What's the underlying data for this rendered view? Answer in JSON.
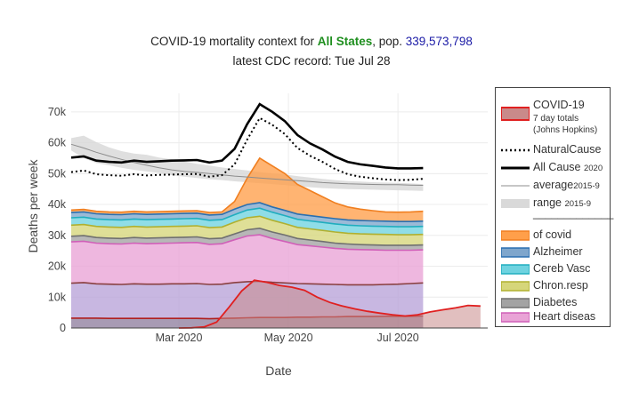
{
  "title": {
    "prefix": "COVID-19 mortality context for ",
    "state": "All States",
    "pop_label": ", pop. ",
    "population": "339,573,798",
    "subtitle": "latest CDC record: Tue Jul 28"
  },
  "colors": {
    "covid_line": "#e02020",
    "covid_fill": "#c98a8a",
    "all_cause": "#000000",
    "natural": "#000000",
    "average": "#8c8c8c",
    "range": "#d9d9d9",
    "of_covid": "#ff9f4a",
    "alzheimer": "#7fa6cc",
    "cereb_vasc": "#6fd3e0",
    "chron_resp": "#d6d67a",
    "diabetes": "#a3a3a3",
    "heart": "#e9a3d6",
    "cancer": "#b8a3d9",
    "bottom": "#a3c7a3"
  },
  "legend": {
    "items": [
      {
        "key": "covid",
        "label": "COVID-19",
        "note1": "7 day totals",
        "note2": "(Johns Hopkins)"
      },
      {
        "key": "natural",
        "label": "NaturalCause"
      },
      {
        "key": "allcause",
        "label": "All Cause",
        "sub": "2020"
      },
      {
        "key": "average",
        "label": "average",
        "sub": "2015-9"
      },
      {
        "key": "range",
        "label": "range",
        "sub": "2015-9"
      },
      {
        "key": "separator",
        "label": "_____________"
      },
      {
        "key": "of_covid",
        "label": "of covid"
      },
      {
        "key": "alzheimer",
        "label": "Alzheimer"
      },
      {
        "key": "cereb_vasc",
        "label": "Cereb Vasc"
      },
      {
        "key": "chron_resp",
        "label": "Chron.resp"
      },
      {
        "key": "diabetes",
        "label": "Diabetes"
      },
      {
        "key": "heart",
        "label": "Heart diseas"
      }
    ]
  },
  "chart_data": {
    "type": "area",
    "title": "COVID-19 mortality context for All States, pop. 339,573,798",
    "subtitle": "latest CDC record: Tue Jul 28",
    "xlabel": "Date",
    "ylabel": "Deaths per week",
    "ylim": [
      0,
      76000
    ],
    "xlim": [
      "2020-01-01",
      "2020-08-20"
    ],
    "x_ticks": [
      "Mar 2020",
      "May 2020",
      "Jul 2020"
    ],
    "y_ticks": [
      "0",
      "10k",
      "20k",
      "30k",
      "40k",
      "50k",
      "60k",
      "70k"
    ],
    "grid": true,
    "legend_position": "right",
    "weeks": [
      "2020-01-01",
      "2020-01-08",
      "2020-01-15",
      "2020-01-22",
      "2020-01-29",
      "2020-02-05",
      "2020-02-12",
      "2020-02-19",
      "2020-02-26",
      "2020-03-04",
      "2020-03-11",
      "2020-03-18",
      "2020-03-25",
      "2020-04-01",
      "2020-04-08",
      "2020-04-15",
      "2020-04-22",
      "2020-04-29",
      "2020-05-06",
      "2020-05-13",
      "2020-05-20",
      "2020-05-27",
      "2020-06-03",
      "2020-06-10",
      "2020-06-17",
      "2020-06-24",
      "2020-07-01",
      "2020-07-08",
      "2020-07-15"
    ],
    "series": [
      {
        "name": "All Cause 2020",
        "values": [
          55200,
          55600,
          54200,
          53800,
          53600,
          54200,
          53800,
          54000,
          54200,
          54300,
          54400,
          53600,
          54200,
          58000,
          66000,
          72500,
          70000,
          67000,
          62500,
          59800,
          57800,
          55500,
          53800,
          53000,
          52500,
          52000,
          51700,
          51700,
          51800
        ]
      },
      {
        "name": "NaturalCause",
        "values": [
          50500,
          51000,
          49800,
          49500,
          49300,
          49800,
          49400,
          49600,
          49700,
          49800,
          49900,
          49000,
          49500,
          53000,
          61000,
          68000,
          65800,
          62800,
          58300,
          55800,
          53800,
          51500,
          49800,
          49000,
          48500,
          48100,
          47900,
          48000,
          48300
        ]
      },
      {
        "name": "average 2015-9",
        "values": [
          59500,
          58300,
          56900,
          55700,
          54600,
          53600,
          52700,
          51900,
          51200,
          50700,
          50400,
          50000,
          49600,
          49200,
          48900,
          48600,
          48300,
          48000,
          47700,
          47400,
          47100,
          46900,
          46700,
          46600,
          46500,
          46400,
          46400,
          46300,
          46200
        ]
      },
      {
        "name": "of covid",
        "values": [
          38200,
          38400,
          37800,
          37600,
          37500,
          37800,
          37600,
          37700,
          37800,
          37900,
          38000,
          37400,
          37600,
          41000,
          48500,
          55000,
          52500,
          50000,
          46500,
          44500,
          42500,
          40500,
          39200,
          38500,
          38000,
          37600,
          37500,
          37600,
          37800
        ]
      },
      {
        "name": "Alzheimer",
        "values": [
          37400,
          37600,
          37000,
          36800,
          36700,
          37000,
          36800,
          36900,
          37000,
          37100,
          37200,
          36600,
          36800,
          38500,
          40000,
          40600,
          39200,
          38100,
          36900,
          36400,
          35900,
          35400,
          35000,
          34800,
          34700,
          34600,
          34500,
          34500,
          34600
        ]
      },
      {
        "name": "Cereb Vasc",
        "values": [
          35700,
          35900,
          35300,
          35100,
          35000,
          35300,
          35100,
          35200,
          35300,
          35400,
          35500,
          34900,
          35100,
          36700,
          38200,
          38800,
          37500,
          36400,
          35200,
          34700,
          34200,
          33700,
          33300,
          33100,
          33000,
          32900,
          32800,
          32800,
          32900
        ]
      },
      {
        "name": "Chron.resp",
        "values": [
          33300,
          33500,
          32900,
          32700,
          32600,
          32900,
          32700,
          32800,
          32900,
          33000,
          33100,
          32500,
          32700,
          34300,
          35700,
          36200,
          34900,
          33800,
          32600,
          32100,
          31600,
          31100,
          30700,
          30500,
          30400,
          30300,
          30200,
          30200,
          30300
        ]
      },
      {
        "name": "Diabetes",
        "values": [
          29700,
          29900,
          29300,
          29100,
          29000,
          29300,
          29100,
          29200,
          29300,
          29400,
          29500,
          28900,
          29100,
          30500,
          31800,
          32300,
          31100,
          30100,
          29000,
          28500,
          28000,
          27500,
          27200,
          27000,
          26900,
          26800,
          26800,
          26800,
          26900
        ]
      },
      {
        "name": "Heart diseas",
        "values": [
          27900,
          28100,
          27500,
          27300,
          27200,
          27500,
          27300,
          27400,
          27500,
          27600,
          27700,
          27100,
          27300,
          28600,
          29800,
          30200,
          29000,
          28000,
          27000,
          26600,
          26200,
          25800,
          25500,
          25400,
          25300,
          25200,
          25200,
          25200,
          25300
        ]
      },
      {
        "name": "",
        "values": [
          14500,
          14700,
          14300,
          14200,
          14100,
          14300,
          14200,
          14200,
          14300,
          14300,
          14400,
          14100,
          14200,
          14700,
          15000,
          15100,
          14800,
          14600,
          14400,
          14300,
          14200,
          14100,
          14000,
          14000,
          14000,
          14100,
          14200,
          14400,
          14600
        ]
      },
      {
        "name": "",
        "values": [
          3200,
          3200,
          3200,
          3100,
          3100,
          3100,
          3100,
          3100,
          3100,
          3100,
          3100,
          3000,
          3100,
          3200,
          3300,
          3400,
          3400,
          3400,
          3500,
          3500,
          3600,
          3600,
          3700,
          3700,
          3700,
          3800,
          3800,
          3800,
          3900
        ]
      }
    ],
    "range_2015_9": {
      "upper": [
        61500,
        62300,
        60200,
        58500,
        57300,
        56500,
        56100,
        55200,
        54600,
        53900,
        53200,
        52600,
        52000,
        51500,
        51000,
        50500,
        50100,
        49700,
        49200,
        48700,
        48300,
        47900,
        47600,
        47400,
        47200,
        47100,
        47000,
        46800,
        46600
      ],
      "lower": [
        57500,
        55000,
        53400,
        52700,
        51900,
        51200,
        50700,
        50200,
        49500,
        49000,
        48600,
        48200,
        47900,
        47500,
        47200,
        46900,
        46600,
        46300,
        45900,
        45600,
        45300,
        45100,
        45000,
        44900,
        44800,
        44700,
        44600,
        44500,
        44400
      ]
    },
    "covid_7day": {
      "name": "COVID-19 7 day totals (Johns Hopkins)",
      "dates": [
        "2020-03-01",
        "2020-03-08",
        "2020-03-15",
        "2020-03-22",
        "2020-03-29",
        "2020-04-05",
        "2020-04-12",
        "2020-04-19",
        "2020-04-26",
        "2020-05-03",
        "2020-05-10",
        "2020-05-17",
        "2020-05-24",
        "2020-05-31",
        "2020-06-07",
        "2020-06-14",
        "2020-06-21",
        "2020-06-28",
        "2020-07-05",
        "2020-07-12",
        "2020-07-19",
        "2020-07-26",
        "2020-08-02",
        "2020-08-09",
        "2020-08-16"
      ],
      "values": [
        0,
        50,
        350,
        1900,
        6800,
        12000,
        15500,
        14800,
        13800,
        13200,
        12200,
        10000,
        8300,
        7100,
        6200,
        5400,
        4800,
        4300,
        3900,
        4300,
        5200,
        5900,
        6500,
        7300,
        7100
      ]
    }
  }
}
